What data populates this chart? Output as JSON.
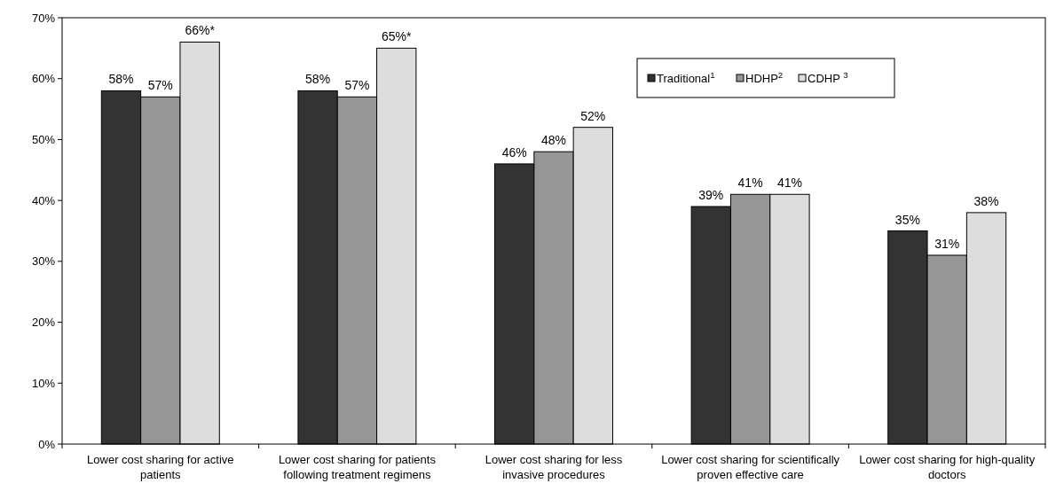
{
  "chart_data": {
    "type": "bar",
    "categories": [
      "Lower cost sharing for active patients",
      "Lower cost sharing for patients following treatment regimens",
      "Lower cost sharing for less invasive procedures",
      "Lower cost sharing for scientifically proven effective care",
      "Lower cost sharing for high-quality doctors"
    ],
    "series": [
      {
        "name": "Traditional$^{1}$",
        "color": "#333333",
        "values": [
          58,
          58,
          46,
          39,
          35
        ],
        "value_labels": [
          "58%",
          "58%",
          "46%",
          "39%",
          "35%"
        ]
      },
      {
        "name": "HDHP$^{2}$",
        "color": "#969696",
        "values": [
          57,
          57,
          48,
          41,
          31
        ],
        "value_labels": [
          "57%",
          "57%",
          "48%",
          "41%",
          "31%"
        ]
      },
      {
        "name": "CDHP $^{3}$",
        "color": "#dddddd",
        "values": [
          66,
          65,
          52,
          41,
          38
        ],
        "value_labels": [
          "66%*",
          "65%*",
          "52%",
          "41%",
          "38%"
        ]
      }
    ],
    "ylim": [
      0,
      70
    ],
    "yticks": [
      {
        "value": 0,
        "label": "0%"
      },
      {
        "value": 10,
        "label": "10%"
      },
      {
        "value": 20,
        "label": "20%"
      },
      {
        "value": 30,
        "label": "30%"
      },
      {
        "value": 40,
        "label": "40%"
      },
      {
        "value": 50,
        "label": "50%"
      },
      {
        "value": 60,
        "label": "60%"
      },
      {
        "value": 70,
        "label": "70%"
      }
    ],
    "grid": false,
    "legend": "top right"
  }
}
